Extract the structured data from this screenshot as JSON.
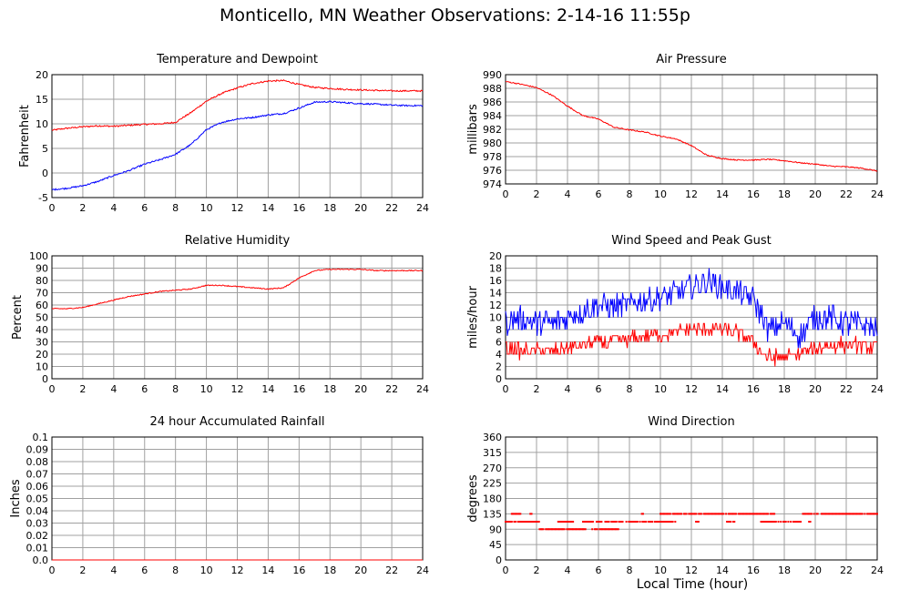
{
  "page": {
    "title": "Monticello, MN Weather Observations: 2-14-16 11:55p",
    "x_axis_label": "Local Time (hour)"
  },
  "colors": {
    "red": "#ff0000",
    "blue": "#0000ff",
    "grid": "#a0a0a0"
  },
  "chart_data": [
    {
      "id": "temperature",
      "type": "line",
      "title": "Temperature and Dewpoint",
      "ylabel": "Fahrenheit",
      "xlim": [
        0,
        24
      ],
      "ylim": [
        -5,
        20
      ],
      "xticks": [
        0,
        2,
        4,
        6,
        8,
        10,
        12,
        14,
        16,
        18,
        20,
        22,
        24
      ],
      "yticks": [
        -5,
        0,
        5,
        10,
        15,
        20
      ],
      "grid": true,
      "series": [
        {
          "color": "#ff0000",
          "noise": 0.15,
          "x": [
            0,
            1,
            2,
            3,
            4,
            5,
            6,
            7,
            8,
            9,
            10,
            11,
            12,
            13,
            14,
            15,
            16,
            17,
            18,
            19,
            20,
            21,
            22,
            23,
            24
          ],
          "y": [
            8.7,
            9.1,
            9.4,
            9.6,
            9.5,
            9.7,
            9.9,
            10.0,
            10.3,
            12.3,
            14.6,
            16.2,
            17.3,
            18.2,
            18.7,
            18.8,
            18.0,
            17.4,
            17.2,
            17.0,
            16.9,
            16.8,
            16.7,
            16.7,
            16.7
          ]
        },
        {
          "color": "#0000ff",
          "noise": 0.15,
          "x": [
            0,
            1,
            2,
            3,
            4,
            5,
            6,
            7,
            8,
            9,
            10,
            11,
            12,
            13,
            14,
            15,
            16,
            17,
            18,
            19,
            20,
            21,
            22,
            23,
            24
          ],
          "y": [
            -3.4,
            -3.1,
            -2.6,
            -1.7,
            -0.5,
            0.5,
            1.8,
            2.7,
            3.8,
            5.8,
            8.8,
            10.3,
            11.0,
            11.3,
            11.8,
            12.1,
            13.2,
            14.4,
            14.5,
            14.3,
            14.1,
            14.0,
            13.8,
            13.7,
            13.7
          ]
        }
      ]
    },
    {
      "id": "pressure",
      "type": "line",
      "title": "Air Pressure",
      "ylabel": "millibars",
      "xlim": [
        0,
        24
      ],
      "ylim": [
        974,
        990
      ],
      "xticks": [
        0,
        2,
        4,
        6,
        8,
        10,
        12,
        14,
        16,
        18,
        20,
        22,
        24
      ],
      "yticks": [
        974,
        976,
        978,
        980,
        982,
        984,
        986,
        988,
        990
      ],
      "grid": true,
      "series": [
        {
          "color": "#ff0000",
          "noise": 0.08,
          "x": [
            0,
            1,
            2,
            3,
            4,
            5,
            6,
            7,
            8,
            9,
            10,
            11,
            12,
            13,
            14,
            15,
            16,
            17,
            18,
            19,
            20,
            21,
            22,
            23,
            24
          ],
          "y": [
            989.0,
            988.6,
            988.1,
            987.0,
            985.4,
            984.0,
            983.5,
            982.3,
            981.9,
            981.6,
            981.0,
            980.6,
            979.6,
            978.2,
            977.7,
            977.5,
            977.5,
            977.6,
            977.4,
            977.1,
            976.9,
            976.6,
            976.5,
            976.3,
            975.9
          ]
        }
      ]
    },
    {
      "id": "humidity",
      "type": "line",
      "title": "Relative Humidity",
      "ylabel": "Percent",
      "xlim": [
        0,
        24
      ],
      "ylim": [
        0,
        100
      ],
      "xticks": [
        0,
        2,
        4,
        6,
        8,
        10,
        12,
        14,
        16,
        18,
        20,
        22,
        24
      ],
      "yticks": [
        0,
        10,
        20,
        30,
        40,
        50,
        60,
        70,
        80,
        90,
        100
      ],
      "grid": true,
      "series": [
        {
          "color": "#ff0000",
          "noise": 0.4,
          "x": [
            0,
            1,
            2,
            3,
            4,
            5,
            6,
            7,
            8,
            9,
            10,
            11,
            12,
            13,
            14,
            15,
            16,
            17,
            18,
            19,
            20,
            21,
            22,
            23,
            24
          ],
          "y": [
            57,
            57,
            58,
            61,
            64,
            67,
            69,
            71,
            72,
            73,
            76,
            76,
            75,
            74,
            73,
            74,
            82,
            88,
            89,
            89,
            89,
            88,
            88,
            88,
            88
          ]
        }
      ]
    },
    {
      "id": "wind_speed",
      "type": "line",
      "title": "Wind Speed and Peak Gust",
      "ylabel": "miles/hour",
      "xlim": [
        0,
        24
      ],
      "ylim": [
        0,
        20
      ],
      "xticks": [
        0,
        2,
        4,
        6,
        8,
        10,
        12,
        14,
        16,
        18,
        20,
        22,
        24
      ],
      "yticks": [
        0,
        2,
        4,
        6,
        8,
        10,
        12,
        14,
        16,
        18,
        20
      ],
      "grid": true,
      "series": [
        {
          "color": "#0000ff",
          "noise": 2.0,
          "x": [
            0,
            1,
            2,
            3,
            4,
            5,
            6,
            7,
            8,
            9,
            10,
            11,
            12,
            13,
            14,
            15,
            16,
            17,
            18,
            19,
            20,
            21,
            22,
            23,
            24
          ],
          "y": [
            9,
            10,
            9,
            9,
            10,
            11,
            12,
            12,
            12,
            13,
            13,
            14,
            15,
            16,
            15,
            14,
            13,
            8,
            9,
            7,
            10,
            10,
            9,
            9,
            8
          ]
        },
        {
          "color": "#ff0000",
          "noise": 1.1,
          "x": [
            0,
            1,
            2,
            3,
            4,
            5,
            6,
            7,
            8,
            9,
            10,
            11,
            12,
            13,
            14,
            15,
            16,
            17,
            18,
            19,
            20,
            21,
            22,
            23,
            24
          ],
          "y": [
            5,
            4.5,
            4.5,
            4.5,
            5,
            5.5,
            6,
            6,
            6.5,
            7,
            7,
            7.5,
            8,
            8,
            8,
            7.5,
            6,
            3.5,
            3.5,
            4,
            5,
            5.5,
            5.5,
            5.5,
            5
          ]
        }
      ]
    },
    {
      "id": "rainfall",
      "type": "line",
      "title": "24 hour Accumulated Rainfall",
      "ylabel": "Inches",
      "xlim": [
        0,
        24
      ],
      "ylim": [
        0,
        0.1
      ],
      "xticks": [
        0,
        2,
        4,
        6,
        8,
        10,
        12,
        14,
        16,
        18,
        20,
        22,
        24
      ],
      "yticks": [
        0.0,
        0.01,
        0.02,
        0.03,
        0.04,
        0.05,
        0.06,
        0.07,
        0.08,
        0.09,
        0.1
      ],
      "ytick_labels": [
        "0.0",
        "0.01",
        "0.02",
        "0.03",
        "0.04",
        "0.05",
        "0.06",
        "0.07",
        "0.08",
        "0.09",
        "0.1"
      ],
      "grid": true,
      "series": [
        {
          "color": "#ff0000",
          "noise": 0,
          "x": [
            0,
            24
          ],
          "y": [
            0,
            0
          ]
        }
      ]
    },
    {
      "id": "wind_direction",
      "type": "scatter",
      "title": "Wind Direction",
      "ylabel": "degrees",
      "xlim": [
        0,
        24
      ],
      "ylim": [
        0,
        360
      ],
      "xticks": [
        0,
        2,
        4,
        6,
        8,
        10,
        12,
        14,
        16,
        18,
        20,
        22,
        24
      ],
      "yticks": [
        0,
        45,
        90,
        135,
        180,
        225,
        270,
        315,
        360
      ],
      "grid": true,
      "series": [
        {
          "color": "#ff0000",
          "segments": [
            {
              "x0": 0.0,
              "x1": 2.2,
              "y": 112
            },
            {
              "x0": 0.4,
              "x1": 1.0,
              "y": 135
            },
            {
              "x0": 1.6,
              "x1": 1.7,
              "y": 135
            },
            {
              "x0": 2.2,
              "x1": 5.2,
              "y": 90
            },
            {
              "x0": 3.4,
              "x1": 4.4,
              "y": 112
            },
            {
              "x0": 5.0,
              "x1": 10.2,
              "y": 112
            },
            {
              "x0": 5.6,
              "x1": 7.3,
              "y": 90
            },
            {
              "x0": 8.8,
              "x1": 8.9,
              "y": 135
            },
            {
              "x0": 10.0,
              "x1": 17.4,
              "y": 135
            },
            {
              "x0": 10.0,
              "x1": 11.0,
              "y": 112
            },
            {
              "x0": 12.3,
              "x1": 12.5,
              "y": 112
            },
            {
              "x0": 14.3,
              "x1": 14.8,
              "y": 112
            },
            {
              "x0": 16.5,
              "x1": 19.2,
              "y": 112
            },
            {
              "x0": 19.2,
              "x1": 24.0,
              "y": 135
            },
            {
              "x0": 19.6,
              "x1": 19.7,
              "y": 112
            }
          ]
        }
      ]
    }
  ]
}
